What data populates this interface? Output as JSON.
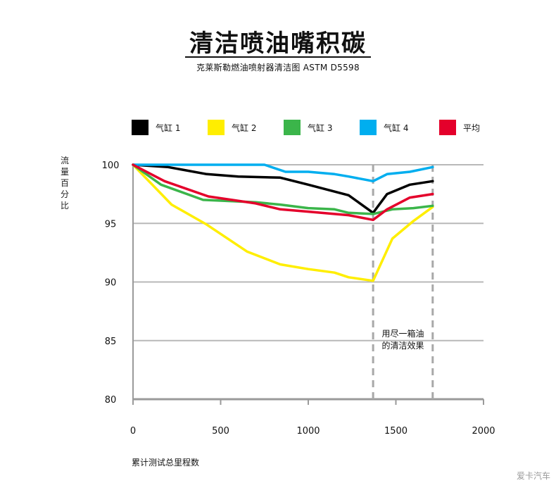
{
  "chart_data": {
    "type": "line",
    "title": "清洁喷油嘴积碳",
    "subtitle": "克莱斯勒燃油喷射器清洁图 ASTM D5598",
    "xlabel": "累计测试总里程数",
    "ylabel": "流量百分比",
    "xlim": [
      0,
      2000
    ],
    "ylim": [
      80,
      100
    ],
    "x_ticks": [
      0,
      500,
      1000,
      1500,
      2000
    ],
    "y_ticks": [
      80,
      85,
      90,
      95,
      100
    ],
    "grid": "horizontal",
    "legend_position": "top",
    "annotation": {
      "lines": [
        "用尽一箱油",
        "的清洁效果"
      ],
      "dashed_x": [
        1370,
        1710
      ]
    },
    "series": [
      {
        "name": "气缸 1",
        "color": "#000000",
        "x": [
          0,
          200,
          420,
          600,
          840,
          1000,
          1230,
          1370,
          1450,
          1580,
          1710
        ],
        "y": [
          100,
          99.8,
          99.2,
          99.0,
          98.9,
          98.3,
          97.4,
          95.9,
          97.5,
          98.3,
          98.6
        ]
      },
      {
        "name": "气缸 2",
        "color": "#ffee00",
        "x": [
          0,
          220,
          420,
          650,
          840,
          1000,
          1150,
          1230,
          1370,
          1480,
          1600,
          1710
        ],
        "y": [
          100,
          96.6,
          94.9,
          92.6,
          91.5,
          91.1,
          90.8,
          90.4,
          90.1,
          93.7,
          95.2,
          96.4
        ]
      },
      {
        "name": "气缸 3",
        "color": "#3bb54a",
        "x": [
          0,
          160,
          400,
          700,
          840,
          1000,
          1150,
          1230,
          1370,
          1480,
          1600,
          1710
        ],
        "y": [
          100,
          98.3,
          97.0,
          96.8,
          96.6,
          96.3,
          96.2,
          95.9,
          95.8,
          96.2,
          96.3,
          96.5
        ]
      },
      {
        "name": "气缸 4",
        "color": "#00aeef",
        "x": [
          0,
          200,
          750,
          870,
          1000,
          1150,
          1230,
          1370,
          1450,
          1580,
          1710
        ],
        "y": [
          100,
          100,
          100,
          99.4,
          99.4,
          99.2,
          99.0,
          98.6,
          99.2,
          99.4,
          99.8
        ]
      },
      {
        "name": "平均",
        "color": "#e4002b",
        "x": [
          0,
          180,
          430,
          700,
          840,
          1000,
          1230,
          1370,
          1450,
          1580,
          1710
        ],
        "y": [
          100,
          98.6,
          97.3,
          96.7,
          96.2,
          96.0,
          95.7,
          95.3,
          96.2,
          97.2,
          97.5
        ]
      }
    ]
  },
  "watermark": "爱卡汽车"
}
